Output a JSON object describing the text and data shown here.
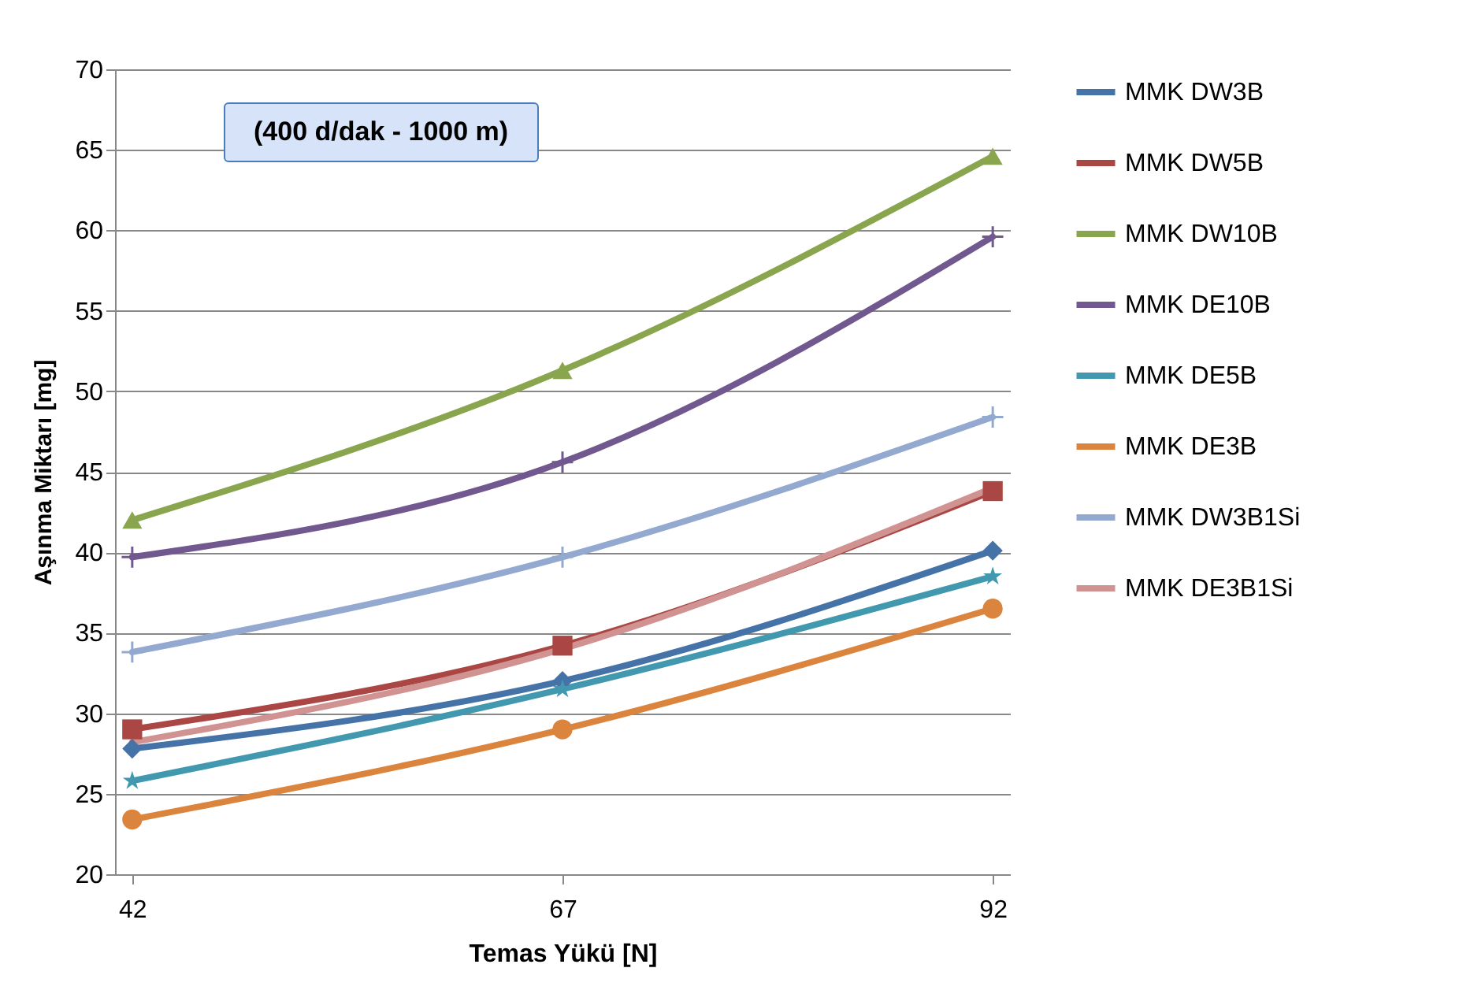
{
  "chart_data": {
    "type": "line",
    "xlabel": "Temas Yükü [N]",
    "ylabel": "Aşınma Miktarı [mg]",
    "categories": [
      "42",
      "67",
      "92"
    ],
    "ylim": [
      20,
      70
    ],
    "yticks": [
      20,
      25,
      30,
      35,
      40,
      45,
      50,
      55,
      60,
      65,
      70
    ],
    "grid": "y",
    "legend": "right",
    "line_style": "solid",
    "annotations": [
      "(400 d/dak - 1000 m)"
    ],
    "series": [
      {
        "name": "MMK DW3B",
        "color": "#4572a7",
        "marker": "diamond",
        "values": [
          27.8,
          32.0,
          40.1
        ]
      },
      {
        "name": "MMK DW5B",
        "color": "#aa4643",
        "marker": "square",
        "values": [
          29.0,
          34.2,
          43.8
        ]
      },
      {
        "name": "MMK DW10B",
        "color": "#89a54e",
        "marker": "triangle",
        "values": [
          42.0,
          51.3,
          64.6
        ]
      },
      {
        "name": "MMK DE10B",
        "color": "#71588f",
        "marker": "cross",
        "values": [
          39.7,
          45.6,
          59.6
        ]
      },
      {
        "name": "MMK DE5B",
        "color": "#4198af",
        "marker": "star",
        "values": [
          25.8,
          31.5,
          38.5
        ]
      },
      {
        "name": "MMK DE3B",
        "color": "#db843d",
        "marker": "circle",
        "values": [
          23.4,
          29.0,
          36.5
        ]
      },
      {
        "name": "MMK DW3B1Si",
        "color": "#93a9cf",
        "marker": "cross",
        "values": [
          33.8,
          39.7,
          48.4
        ]
      },
      {
        "name": "MMK DE3B1Si",
        "color": "#d19392",
        "marker": "none",
        "values": [
          28.2,
          34.0,
          44.0
        ]
      }
    ]
  }
}
